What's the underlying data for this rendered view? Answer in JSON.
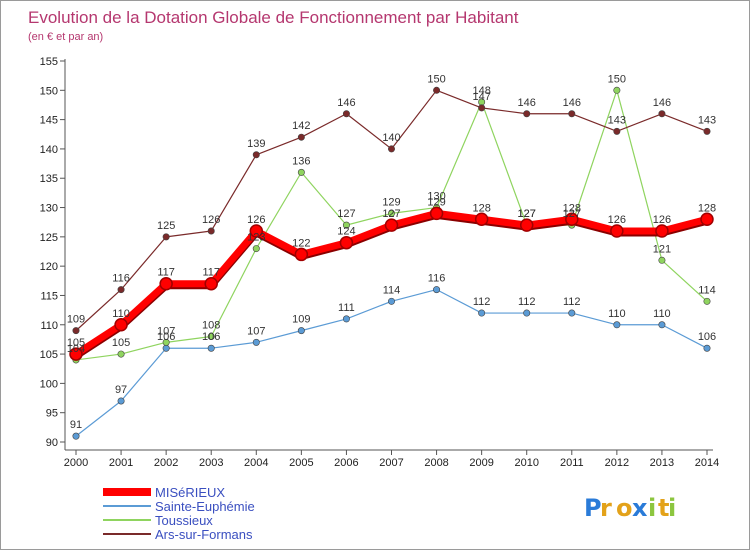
{
  "chart_data": {
    "type": "line",
    "title": "Evolution de la Dotation Globale de Fonctionnement par Habitant",
    "subtitle": "(en € et par an)",
    "xlabel": "",
    "ylabel": "",
    "ylim": [
      90,
      155
    ],
    "yticks": [
      90,
      95,
      100,
      105,
      110,
      115,
      120,
      125,
      130,
      135,
      140,
      145,
      150,
      155
    ],
    "categories": [
      "2000",
      "2001",
      "2002",
      "2003",
      "2004",
      "2005",
      "2006",
      "2007",
      "2008",
      "2009",
      "2010",
      "2011",
      "2012",
      "2013",
      "2014"
    ],
    "series": [
      {
        "name": "Sainte-Euphémie",
        "color": "#5b9bd5",
        "values": [
          91,
          97,
          106,
          106,
          107,
          109,
          111,
          114,
          116,
          112,
          112,
          112,
          110,
          110,
          106
        ]
      },
      {
        "name": "Toussieux",
        "color": "#8fd45f",
        "values": [
          104,
          105,
          107,
          108,
          123,
          136,
          127,
          129,
          130,
          148,
          127,
          127,
          150,
          121,
          114
        ]
      },
      {
        "name": "Ars-sur-Formans",
        "color": "#7a2a2a",
        "values": [
          109,
          116,
          125,
          126,
          139,
          142,
          146,
          140,
          150,
          147,
          146,
          146,
          143,
          146,
          143
        ]
      },
      {
        "name": "MISéRIEUX",
        "color": "#ff0000",
        "values": [
          105,
          110,
          117,
          117,
          126,
          122,
          124,
          127,
          129,
          128,
          127,
          128,
          126,
          126,
          128
        ]
      }
    ],
    "legend": [
      "MISéRIEUX",
      "Sainte-Euphémie",
      "Toussieux",
      "Ars-sur-Formans"
    ],
    "legend_position": "bottom-left",
    "grid": false
  },
  "logo": {
    "text": "Proxiti"
  }
}
